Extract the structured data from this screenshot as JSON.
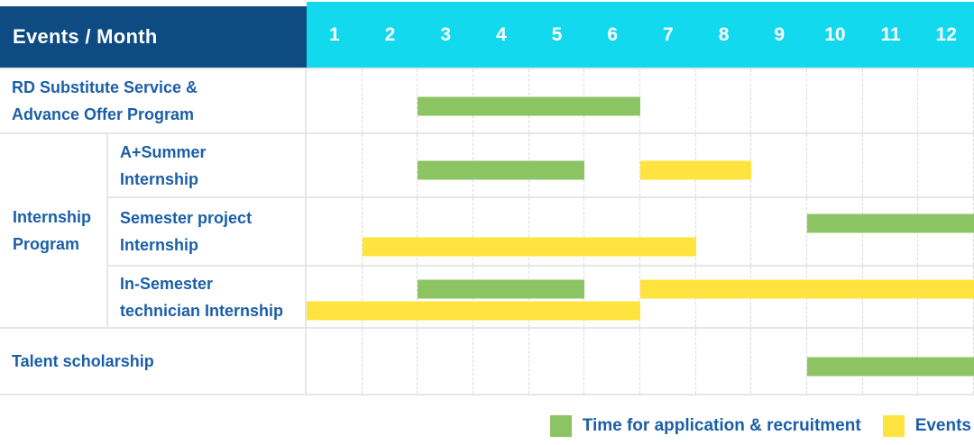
{
  "table": {
    "header": {
      "label": "Events / Month",
      "months": [
        "1",
        "2",
        "3",
        "4",
        "5",
        "6",
        "7",
        "8",
        "9",
        "10",
        "11",
        "12"
      ]
    },
    "group_label_lines": [
      "Internship",
      "Program"
    ],
    "rows": [
      {
        "id": "rd-substitute-advance-offer",
        "label_lines": [
          "RD Substitute Service &",
          "Advance Offer Program"
        ],
        "bars": [
          {
            "color": "green",
            "lane": "single",
            "start_month": 3,
            "end_month": 6
          }
        ]
      },
      {
        "id": "a-plus-summer-internship",
        "group": "internship-program",
        "label_lines": [
          "A+Summer",
          "Internship"
        ],
        "bars": [
          {
            "color": "green",
            "lane": "single",
            "start_month": 3,
            "end_month": 5
          },
          {
            "color": "yellow",
            "lane": "single",
            "start_month": 7,
            "end_month": 8
          }
        ]
      },
      {
        "id": "semester-project-internship",
        "group": "internship-program",
        "label_lines": [
          "Semester project",
          "Internship"
        ],
        "bars": [
          {
            "color": "green",
            "lane": "top",
            "start_month": 10,
            "end_month": 12
          },
          {
            "color": "yellow",
            "lane": "bottom",
            "start_month": 2,
            "end_month": 7
          }
        ]
      },
      {
        "id": "in-semester-technician-internship",
        "group": "internship-program",
        "label_lines": [
          "In-Semester",
          "technician Internship"
        ],
        "bars": [
          {
            "color": "green",
            "lane": "top",
            "start_month": 3,
            "end_month": 5
          },
          {
            "color": "yellow",
            "lane": "top",
            "start_month": 7,
            "end_month": 12
          },
          {
            "color": "yellow",
            "lane": "bottom",
            "start_month": 1,
            "end_month": 6
          }
        ]
      },
      {
        "id": "talent-scholarship",
        "label_lines": [
          "Talent scholarship"
        ],
        "bars": [
          {
            "color": "green",
            "lane": "single",
            "start_month": 10,
            "end_month": 12
          }
        ]
      }
    ]
  },
  "legend": {
    "items": [
      {
        "color": "green",
        "label": "Time for application & recruitment"
      },
      {
        "color": "yellow",
        "label": "Events"
      }
    ]
  },
  "colors": {
    "navy": "#0d4b82",
    "cyan": "#12d9ee",
    "green": "#8cc463",
    "yellow": "#ffe33e",
    "label": "#1b5fa8",
    "line": "#e7e7e7",
    "grid": "#d9d9d9"
  },
  "chart_data": {
    "type": "bar",
    "variant": "gantt",
    "title": "Events / Month",
    "xlabel": "Month",
    "x_ticks": [
      1,
      2,
      3,
      4,
      5,
      6,
      7,
      8,
      9,
      10,
      11,
      12
    ],
    "x_range": [
      1,
      12
    ],
    "legend_position": "bottom-right",
    "series_legend": [
      "Time for application & recruitment",
      "Events"
    ],
    "rows": [
      {
        "label": "RD Substitute Service & Advance Offer Program",
        "group": null,
        "bars": [
          {
            "series": "Time for application & recruitment",
            "start_month": 3,
            "end_month": 6
          }
        ]
      },
      {
        "label": "A+Summer Internship",
        "group": "Internship Program",
        "bars": [
          {
            "series": "Time for application & recruitment",
            "start_month": 3,
            "end_month": 5
          },
          {
            "series": "Events",
            "start_month": 7,
            "end_month": 8
          }
        ]
      },
      {
        "label": "Semester project Internship",
        "group": "Internship Program",
        "bars": [
          {
            "series": "Time for application & recruitment",
            "start_month": 10,
            "end_month": 12
          },
          {
            "series": "Events",
            "start_month": 2,
            "end_month": 7
          }
        ]
      },
      {
        "label": "In-Semester technician Internship",
        "group": "Internship Program",
        "bars": [
          {
            "series": "Time for application & recruitment",
            "start_month": 3,
            "end_month": 5
          },
          {
            "series": "Events",
            "start_month": 7,
            "end_month": 12
          },
          {
            "series": "Events",
            "start_month": 1,
            "end_month": 6
          }
        ]
      },
      {
        "label": "Talent scholarship",
        "group": null,
        "bars": [
          {
            "series": "Time for application & recruitment",
            "start_month": 10,
            "end_month": 12
          }
        ]
      }
    ]
  }
}
